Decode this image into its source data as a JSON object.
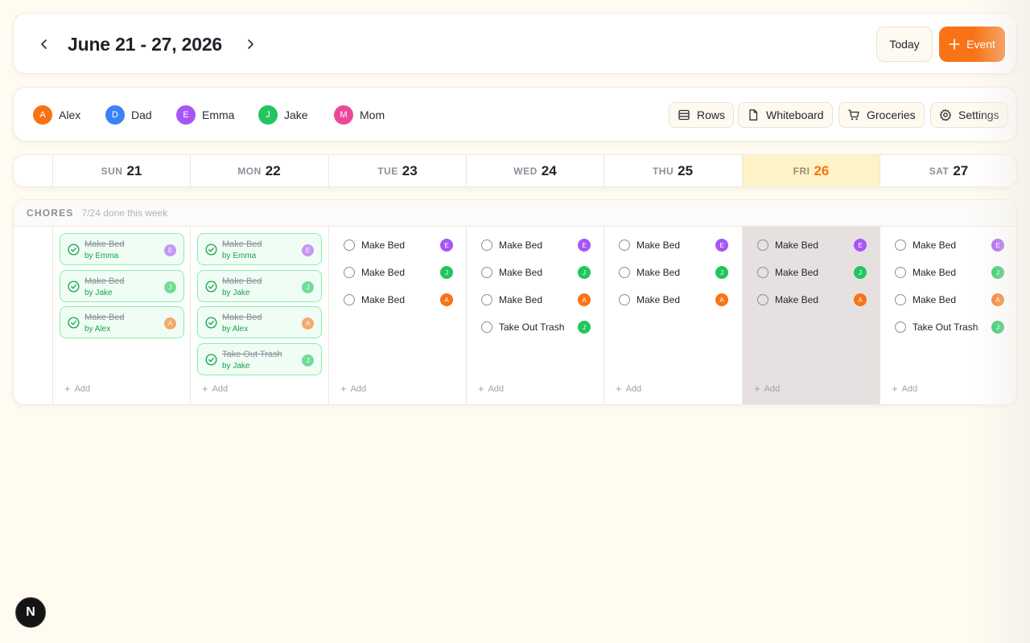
{
  "header": {
    "title": "June 21 - 27, 2026",
    "today_label": "Today",
    "event_label": "Event"
  },
  "members": [
    {
      "name": "Alex",
      "initial": "A",
      "color": "#f97316"
    },
    {
      "name": "Dad",
      "initial": "D",
      "color": "#3b82f6"
    },
    {
      "name": "Emma",
      "initial": "E",
      "color": "#a855f7"
    },
    {
      "name": "Jake",
      "initial": "J",
      "color": "#22c55e"
    },
    {
      "name": "Mom",
      "initial": "M",
      "color": "#ec4899"
    }
  ],
  "toolbar": {
    "rows_label": "Rows",
    "whiteboard_label": "Whiteboard",
    "groceries_label": "Groceries",
    "settings_label": "Settings"
  },
  "days": [
    {
      "dow": "SUN",
      "num": "21"
    },
    {
      "dow": "MON",
      "num": "22"
    },
    {
      "dow": "TUE",
      "num": "23"
    },
    {
      "dow": "WED",
      "num": "24"
    },
    {
      "dow": "THU",
      "num": "25"
    },
    {
      "dow": "FRI",
      "num": "26",
      "today": true
    },
    {
      "dow": "SAT",
      "num": "27"
    }
  ],
  "chores": {
    "title": "CHORES",
    "count": "7/24 done this week",
    "add_label": "Add",
    "columns": [
      [
        {
          "title": "Make Bed",
          "done": true,
          "by": "by Emma",
          "initial": "E",
          "color": "#a855f7"
        },
        {
          "title": "Make Bed",
          "done": true,
          "by": "by Jake",
          "initial": "J",
          "color": "#22c55e"
        },
        {
          "title": "Make Bed",
          "done": true,
          "by": "by Alex",
          "initial": "A",
          "color": "#f97316"
        }
      ],
      [
        {
          "title": "Make Bed",
          "done": true,
          "by": "by Emma",
          "initial": "E",
          "color": "#a855f7"
        },
        {
          "title": "Make Bed",
          "done": true,
          "by": "by Jake",
          "initial": "J",
          "color": "#22c55e"
        },
        {
          "title": "Make Bed",
          "done": true,
          "by": "by Alex",
          "initial": "A",
          "color": "#f97316"
        },
        {
          "title": "Take Out Trash",
          "done": true,
          "by": "by Jake",
          "initial": "J",
          "color": "#22c55e"
        }
      ],
      [
        {
          "title": "Make Bed",
          "done": false,
          "initial": "E",
          "color": "#a855f7"
        },
        {
          "title": "Make Bed",
          "done": false,
          "initial": "J",
          "color": "#22c55e"
        },
        {
          "title": "Make Bed",
          "done": false,
          "initial": "A",
          "color": "#f97316"
        }
      ],
      [
        {
          "title": "Make Bed",
          "done": false,
          "initial": "E",
          "color": "#a855f7"
        },
        {
          "title": "Make Bed",
          "done": false,
          "initial": "J",
          "color": "#22c55e"
        },
        {
          "title": "Make Bed",
          "done": false,
          "initial": "A",
          "color": "#f97316"
        },
        {
          "title": "Take Out Trash",
          "done": false,
          "initial": "J",
          "color": "#22c55e"
        }
      ],
      [
        {
          "title": "Make Bed",
          "done": false,
          "initial": "E",
          "color": "#a855f7"
        },
        {
          "title": "Make Bed",
          "done": false,
          "initial": "J",
          "color": "#22c55e"
        },
        {
          "title": "Make Bed",
          "done": false,
          "initial": "A",
          "color": "#f97316"
        }
      ],
      [
        {
          "title": "Make Bed",
          "done": false,
          "initial": "E",
          "color": "#a855f7"
        },
        {
          "title": "Make Bed",
          "done": false,
          "initial": "J",
          "color": "#22c55e"
        },
        {
          "title": "Make Bed",
          "done": false,
          "initial": "A",
          "color": "#f97316"
        }
      ],
      [
        {
          "title": "Make Bed",
          "done": false,
          "initial": "E",
          "color": "#a855f7"
        },
        {
          "title": "Make Bed",
          "done": false,
          "initial": "J",
          "color": "#22c55e"
        },
        {
          "title": "Make Bed",
          "done": false,
          "initial": "A",
          "color": "#f97316"
        },
        {
          "title": "Take Out Trash",
          "done": false,
          "initial": "J",
          "color": "#22c55e"
        }
      ]
    ]
  },
  "badge": {
    "label": "N"
  }
}
